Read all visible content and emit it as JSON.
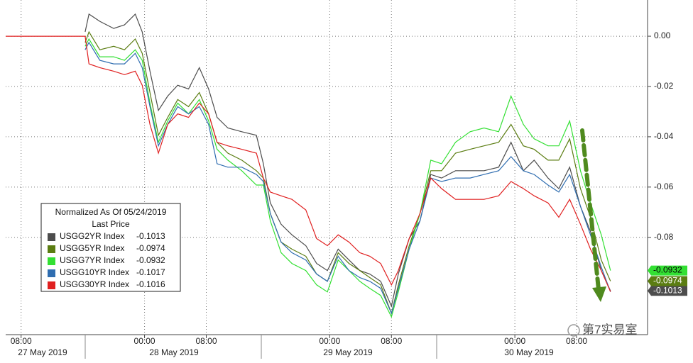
{
  "chart_data": {
    "type": "line",
    "x": [
      6.0,
      16.3,
      16.8,
      18.2,
      20.0,
      21.4,
      22.8,
      23.7,
      24.7,
      25.8,
      27.0,
      28.3,
      29.7,
      31.1,
      32.3,
      33.4,
      34.8,
      36.6,
      38.5,
      39.4,
      40.3,
      41.7,
      43.1,
      44.9,
      46.3,
      47.7,
      49.1,
      50.5,
      51.9,
      53.2,
      54.6,
      56.0,
      56.9,
      58.3,
      59.7,
      61.1,
      62.5,
      64.3,
      66.2,
      68.0,
      69.9,
      71.5,
      73.1,
      74.5,
      76.3,
      77.7,
      79.1,
      80.5,
      81.8,
      83.2,
      84.4
    ],
    "xlim": [
      6,
      89.2
    ],
    "xticks": [
      {
        "value": 8,
        "label": "08:00"
      },
      {
        "value": 24,
        "label": "00:00"
      },
      {
        "value": 32,
        "label": "08:00"
      },
      {
        "value": 48,
        "label": "00:00"
      },
      {
        "value": 56,
        "label": "08:00"
      },
      {
        "value": 72,
        "label": "00:00"
      },
      {
        "value": 80,
        "label": "08:00"
      }
    ],
    "date_labels": [
      "27 May 2019",
      "28 May 2019",
      "29 May 2019",
      "30 May 2019"
    ],
    "ylim": [
      -0.1187,
      0.0144
    ],
    "yticks": [
      {
        "value": 0,
        "label": "0.00"
      },
      -0.02,
      -0.04,
      -0.06,
      -0.08
    ],
    "grid": true,
    "legend_title": "Normalized As Of 05/24/2019",
    "legend_subtitle": "Last Price",
    "series": [
      {
        "name": "USGG2YR Index",
        "color": "#4d4d4d",
        "last_price": -0.1013,
        "axis_tag": true,
        "values": [
          null,
          0.0017,
          0.0088,
          0.0059,
          0.0031,
          0.0045,
          0.0088,
          0.0017,
          -0.0139,
          -0.0295,
          -0.0238,
          -0.0195,
          -0.021,
          -0.0125,
          -0.021,
          -0.0323,
          -0.0365,
          -0.038,
          -0.0394,
          -0.0507,
          -0.0663,
          -0.0748,
          -0.079,
          -0.0833,
          -0.0904,
          -0.0932,
          -0.0847,
          -0.089,
          -0.0932,
          -0.0946,
          -0.0975,
          -0.1074,
          -0.0946,
          -0.0805,
          -0.0734,
          -0.055,
          -0.0564,
          -0.0535,
          -0.0535,
          -0.0535,
          -0.0521,
          -0.0422,
          -0.0535,
          -0.0493,
          -0.0564,
          -0.0606,
          -0.0521,
          -0.0677,
          -0.0776,
          -0.0932,
          -0.1013
        ]
      },
      {
        "name": "USGG5YR Index",
        "color": "#5b7d12",
        "last_price": -0.0974,
        "axis_tag": true,
        "values": [
          null,
          -0.0025,
          0.0017,
          -0.0054,
          -0.004,
          -0.0054,
          -0.0011,
          -0.0068,
          -0.0224,
          -0.0394,
          -0.0323,
          -0.0252,
          -0.028,
          -0.0224,
          -0.0309,
          -0.0422,
          -0.0465,
          -0.0493,
          -0.0535,
          -0.0564,
          -0.0705,
          -0.0819,
          -0.0847,
          -0.0875,
          -0.0946,
          -0.0975,
          -0.0861,
          -0.0904,
          -0.0932,
          -0.096,
          -0.0989,
          -0.1102,
          -0.0989,
          -0.0833,
          -0.0705,
          -0.0535,
          -0.0535,
          -0.0465,
          -0.045,
          -0.0436,
          -0.0422,
          -0.0351,
          -0.0436,
          -0.045,
          -0.0493,
          -0.0493,
          -0.0408,
          -0.0606,
          -0.072,
          -0.089,
          -0.0974
        ]
      },
      {
        "name": "USGG7YR Index",
        "color": "#33e033",
        "last_price": -0.0932,
        "axis_tag": true,
        "values": [
          null,
          -0.004,
          -0.0011,
          -0.0082,
          -0.0082,
          -0.0096,
          -0.0054,
          -0.0096,
          -0.0266,
          -0.0422,
          -0.0337,
          -0.0266,
          -0.0309,
          -0.0252,
          -0.0337,
          -0.045,
          -0.0493,
          -0.0535,
          -0.0592,
          -0.0592,
          -0.0734,
          -0.0861,
          -0.0904,
          -0.0932,
          -0.0989,
          -0.1017,
          -0.089,
          -0.0932,
          -0.0975,
          -0.1003,
          -0.1031,
          -0.1116,
          -0.1017,
          -0.0847,
          -0.0705,
          -0.0493,
          -0.0507,
          -0.0422,
          -0.038,
          -0.0365,
          -0.038,
          -0.0238,
          -0.0351,
          -0.0408,
          -0.0436,
          -0.0436,
          -0.0337,
          -0.0535,
          -0.0663,
          -0.079,
          -0.0932
        ]
      },
      {
        "name": "USGG10YR Index",
        "color": "#2f6db0",
        "last_price": -0.1017,
        "axis_tag": false,
        "values": [
          null,
          -0.0054,
          -0.0025,
          -0.0096,
          -0.011,
          -0.011,
          -0.0068,
          -0.0125,
          -0.028,
          -0.0436,
          -0.0351,
          -0.028,
          -0.0309,
          -0.028,
          -0.0351,
          -0.0507,
          -0.0521,
          -0.0521,
          -0.055,
          -0.0578,
          -0.0705,
          -0.0819,
          -0.0861,
          -0.089,
          -0.0946,
          -0.0975,
          -0.0875,
          -0.0932,
          -0.096,
          -0.0975,
          -0.1003,
          -0.1102,
          -0.1003,
          -0.0847,
          -0.0734,
          -0.0564,
          -0.0578,
          -0.0564,
          -0.0564,
          -0.055,
          -0.0535,
          -0.0479,
          -0.0535,
          -0.055,
          -0.0592,
          -0.062,
          -0.055,
          -0.0677,
          -0.079,
          -0.0918,
          -0.1017
        ]
      },
      {
        "name": "USGG30YR Index",
        "color": "#e02020",
        "last_price": -0.1016,
        "axis_tag": false,
        "values": [
          0,
          0,
          -0.011,
          -0.0125,
          -0.0139,
          -0.0153,
          -0.0139,
          -0.0195,
          -0.0351,
          -0.0465,
          -0.0351,
          -0.0309,
          -0.0323,
          -0.0266,
          -0.0309,
          -0.0422,
          -0.0436,
          -0.045,
          -0.0465,
          -0.0564,
          -0.062,
          -0.0635,
          -0.0649,
          -0.0691,
          -0.0805,
          -0.0833,
          -0.079,
          -0.0819,
          -0.0861,
          -0.0875,
          -0.0904,
          -0.0989,
          -0.0932,
          -0.0805,
          -0.0705,
          -0.0564,
          -0.0606,
          -0.0649,
          -0.0649,
          -0.0649,
          -0.0635,
          -0.0578,
          -0.0606,
          -0.0635,
          -0.0663,
          -0.072,
          -0.0649,
          -0.0748,
          -0.0847,
          -0.0932,
          -0.1016
        ]
      }
    ],
    "watermark": "第7实易室"
  }
}
